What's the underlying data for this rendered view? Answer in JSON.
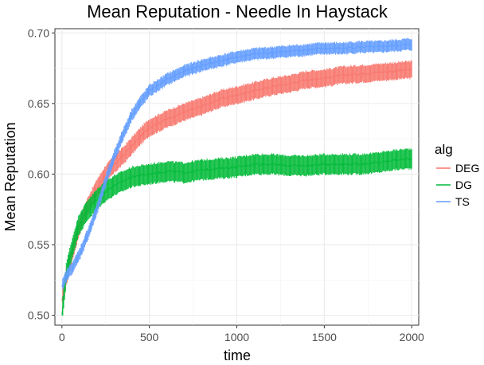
{
  "chart_data": {
    "type": "line",
    "title": "Mean Reputation - Needle In Haystack",
    "xlabel": "time",
    "ylabel": "Mean Reputation",
    "xlim": [
      -40,
      2040
    ],
    "ylim": [
      0.493,
      0.703
    ],
    "xticks": [
      0,
      500,
      1000,
      1500,
      2000
    ],
    "yticks": [
      0.5,
      0.55,
      0.6,
      0.65,
      0.7
    ],
    "xtick_labels": [
      "0",
      "500",
      "1000",
      "1500",
      "2000"
    ],
    "ytick_labels": [
      "0.50",
      "0.55",
      "0.60",
      "0.65",
      "0.70"
    ],
    "grid": true,
    "error_bars": true,
    "legend": {
      "title": "alg",
      "position": "right",
      "entries": [
        {
          "label": "DEG",
          "color": "#F8766D"
        },
        {
          "label": "DG",
          "color": "#00BA38"
        },
        {
          "label": "TS",
          "color": "#619CFF"
        }
      ]
    },
    "series": [
      {
        "name": "DEG",
        "color": "#F8766D",
        "x": [
          0,
          25,
          50,
          75,
          100,
          150,
          200,
          250,
          300,
          350,
          400,
          450,
          500,
          600,
          700,
          800,
          900,
          1000,
          1100,
          1200,
          1300,
          1400,
          1500,
          1600,
          1700,
          1800,
          1900,
          2000
        ],
        "y": [
          0.51,
          0.527,
          0.54,
          0.552,
          0.563,
          0.578,
          0.59,
          0.6,
          0.607,
          0.613,
          0.62,
          0.627,
          0.633,
          0.639,
          0.644,
          0.648,
          0.653,
          0.656,
          0.659,
          0.662,
          0.664,
          0.667,
          0.668,
          0.67,
          0.671,
          0.672,
          0.673,
          0.674
        ],
        "err": 0.006
      },
      {
        "name": "DG",
        "color": "#00BA38",
        "x": [
          0,
          25,
          50,
          75,
          100,
          150,
          200,
          250,
          300,
          350,
          400,
          450,
          500,
          600,
          700,
          800,
          900,
          1000,
          1100,
          1200,
          1300,
          1400,
          1500,
          1600,
          1700,
          1800,
          1900,
          2000
        ],
        "y": [
          0.5,
          0.53,
          0.543,
          0.555,
          0.565,
          0.575,
          0.582,
          0.588,
          0.592,
          0.595,
          0.598,
          0.599,
          0.6,
          0.602,
          0.601,
          0.603,
          0.604,
          0.605,
          0.607,
          0.607,
          0.606,
          0.606,
          0.607,
          0.607,
          0.607,
          0.608,
          0.61,
          0.611
        ],
        "err": 0.007
      },
      {
        "name": "TS",
        "color": "#619CFF",
        "x": [
          0,
          25,
          50,
          75,
          100,
          150,
          200,
          250,
          300,
          350,
          400,
          450,
          500,
          600,
          700,
          800,
          900,
          1000,
          1100,
          1200,
          1300,
          1400,
          1500,
          1600,
          1700,
          1800,
          1900,
          2000
        ],
        "y": [
          0.52,
          0.528,
          0.532,
          0.537,
          0.543,
          0.558,
          0.575,
          0.595,
          0.613,
          0.628,
          0.642,
          0.651,
          0.659,
          0.667,
          0.673,
          0.677,
          0.68,
          0.683,
          0.685,
          0.686,
          0.687,
          0.688,
          0.689,
          0.689,
          0.69,
          0.69,
          0.691,
          0.692
        ],
        "err": 0.004
      }
    ]
  }
}
